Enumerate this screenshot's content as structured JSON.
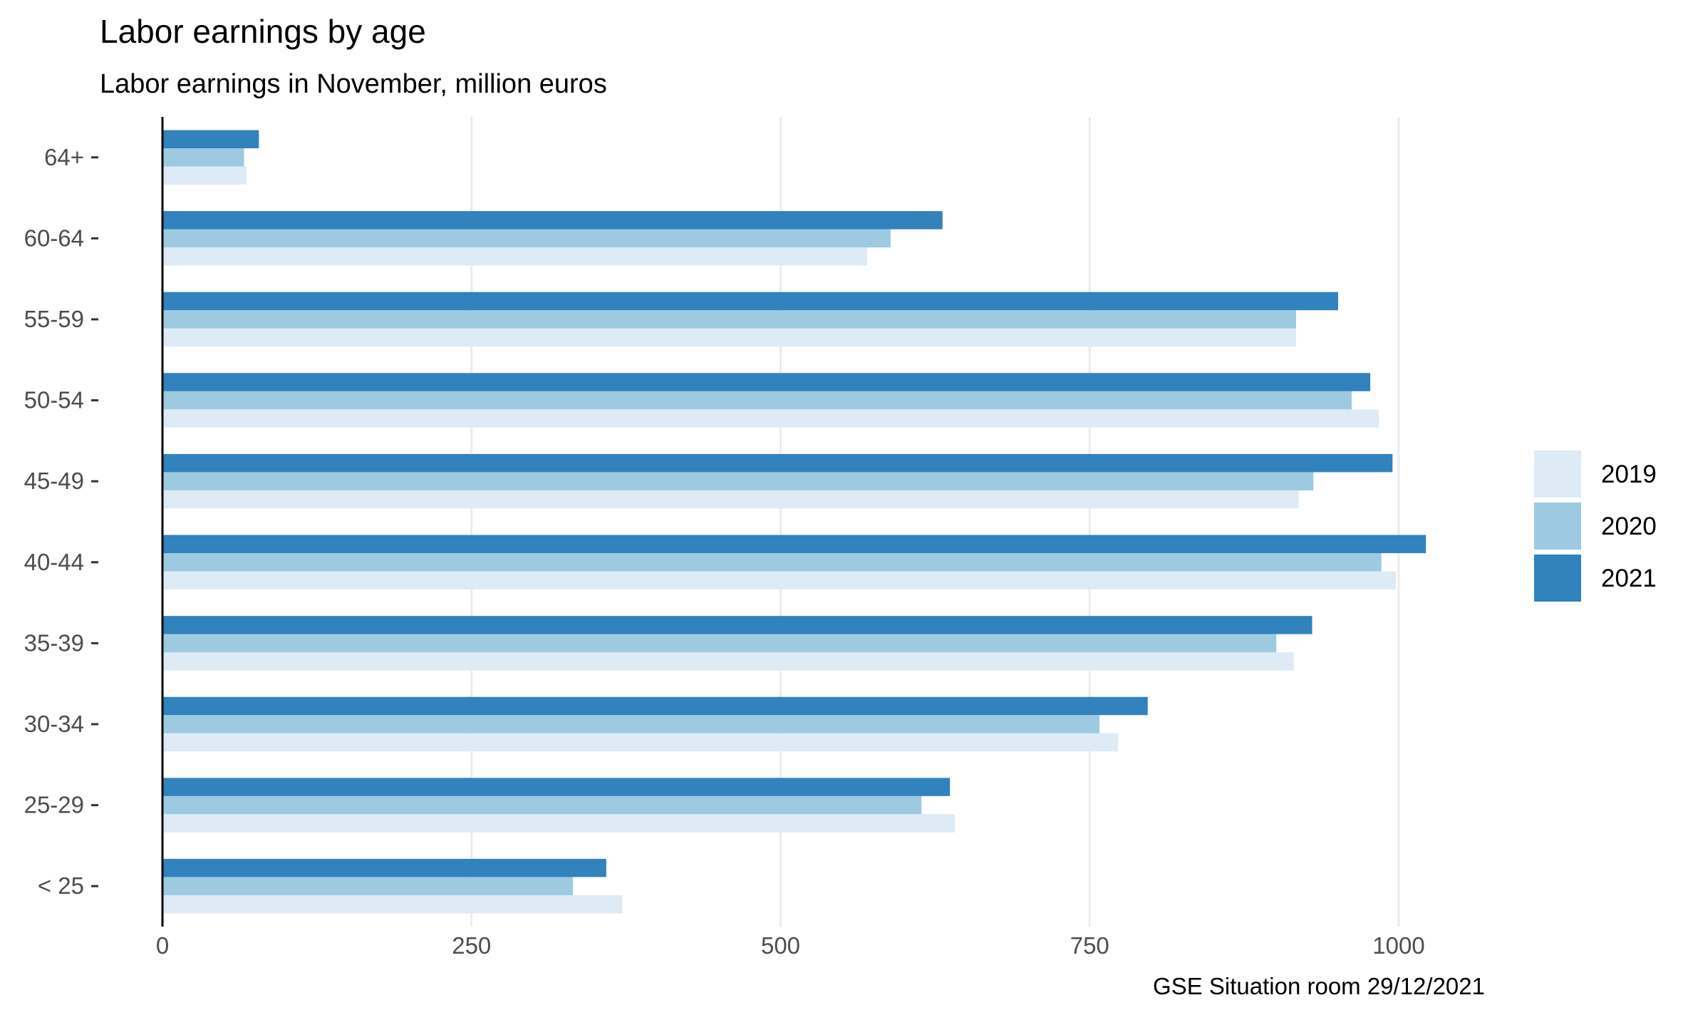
{
  "chart_data": {
    "type": "bar",
    "orientation": "horizontal",
    "title": "Labor earnings by age",
    "subtitle": "Labor earnings in November, million euros",
    "caption": "GSE Situation room 29/12/2021",
    "categories": [
      "< 25",
      "25-29",
      "30-34",
      "35-39",
      "40-44",
      "45-49",
      "50-54",
      "55-59",
      "60-64",
      "64+"
    ],
    "series": [
      {
        "name": "2019",
        "color": "#deebf7",
        "values": [
          372,
          641,
          773,
          915,
          998,
          919,
          984,
          917,
          570,
          68
        ]
      },
      {
        "name": "2020",
        "color": "#9ecae1",
        "values": [
          332,
          614,
          758,
          901,
          986,
          931,
          962,
          917,
          589,
          66
        ]
      },
      {
        "name": "2021",
        "color": "#3182bd",
        "values": [
          359,
          637,
          797,
          930,
          1022,
          995,
          977,
          951,
          631,
          78
        ]
      }
    ],
    "x_ticks": [
      "0",
      "250",
      "500",
      "750",
      "1000"
    ],
    "xlim": [
      0,
      1150
    ],
    "grid": "vertical-major",
    "legend_position": "right"
  }
}
